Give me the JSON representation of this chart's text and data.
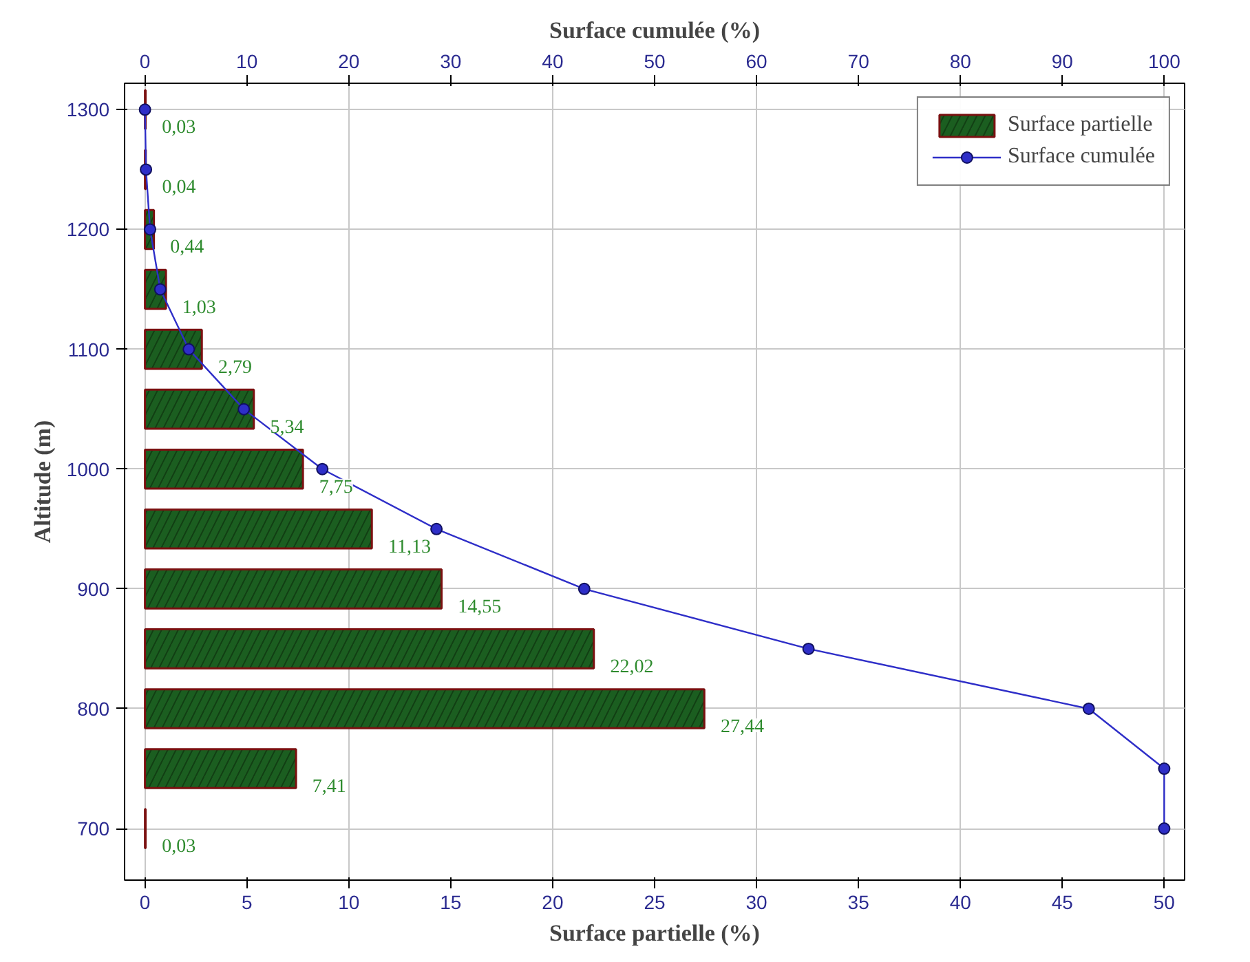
{
  "chart_data": {
    "type": "bar",
    "orientation": "horizontal",
    "xlabel": "Surface partielle (%)",
    "ylabel": "Altitude (m)",
    "x2label": "Surface cumulée (%)",
    "x": [
      700,
      750,
      800,
      850,
      900,
      950,
      1000,
      1050,
      1100,
      1150,
      1200,
      1250,
      1300
    ],
    "series": [
      {
        "name": "Surface partielle",
        "color": "#1b5e20",
        "values": [
          0.03,
          7.41,
          27.44,
          22.02,
          14.55,
          11.13,
          7.75,
          5.34,
          2.79,
          1.03,
          0.44,
          0.04,
          0.03
        ],
        "value_labels": [
          "0,03",
          "7,41",
          "27,44",
          "22,02",
          "14,55",
          "11,13",
          "7,75",
          "5,34",
          "2,79",
          "1,03",
          "0,44",
          "0,04",
          "0,03"
        ]
      },
      {
        "name": "Surface cumulée",
        "type": "line",
        "axis": "x2",
        "color": "#2e2ec8",
        "values": [
          100,
          100,
          92.6,
          65.1,
          43.1,
          28.6,
          17.4,
          9.7,
          4.3,
          1.5,
          0.5,
          0.1,
          0.0
        ]
      }
    ],
    "xlim": [
      -1,
      51
    ],
    "xticks": [
      0,
      5,
      10,
      15,
      20,
      25,
      30,
      35,
      40,
      45,
      50
    ],
    "x2lim": [
      -2,
      102
    ],
    "x2ticks": [
      0,
      10,
      20,
      30,
      40,
      50,
      60,
      70,
      80,
      90,
      100
    ],
    "ylim": [
      657,
      1322
    ],
    "yticks": [
      700,
      800,
      900,
      1000,
      1100,
      1200,
      1300
    ],
    "grid": true,
    "legend": "top right",
    "marker": "circle",
    "line_style": "solid"
  }
}
